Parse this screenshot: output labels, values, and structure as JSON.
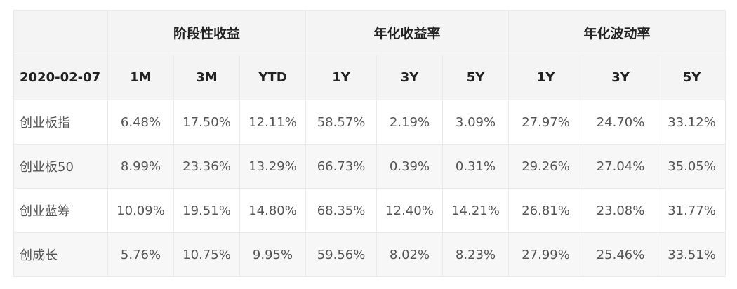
{
  "table": {
    "group_headers": [
      "阶段性收益",
      "年化收益率",
      "年化波动率"
    ],
    "date": "2020-02-07",
    "sub_headers": [
      "1M",
      "3M",
      "YTD",
      "1Y",
      "3Y",
      "5Y",
      "1Y",
      "3Y",
      "5Y"
    ],
    "rows": [
      {
        "name": "创业板指",
        "values": [
          "6.48%",
          "17.50%",
          "12.11%",
          "58.57%",
          "2.19%",
          "3.09%",
          "27.97%",
          "24.70%",
          "33.12%"
        ]
      },
      {
        "name": "创业板50",
        "values": [
          "8.99%",
          "23.36%",
          "13.29%",
          "66.73%",
          "0.39%",
          "0.31%",
          "29.26%",
          "27.04%",
          "35.05%"
        ]
      },
      {
        "name": "创业蓝筹",
        "values": [
          "10.09%",
          "19.51%",
          "14.80%",
          "68.35%",
          "12.40%",
          "14.21%",
          "26.81%",
          "23.08%",
          "31.77%"
        ]
      },
      {
        "name": "创成长",
        "values": [
          "5.76%",
          "10.75%",
          "9.95%",
          "59.56%",
          "8.02%",
          "8.23%",
          "27.99%",
          "25.46%",
          "33.51%"
        ]
      }
    ]
  }
}
